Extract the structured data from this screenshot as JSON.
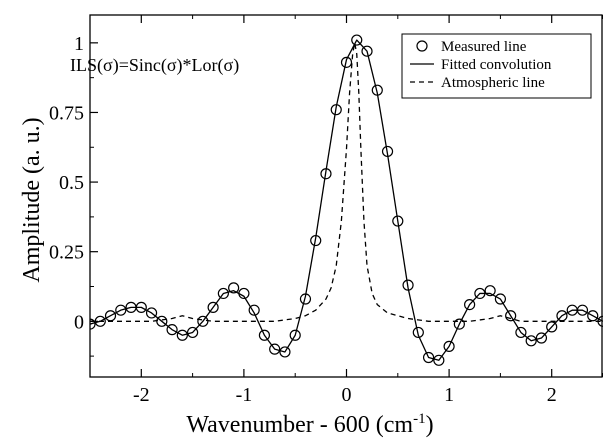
{
  "chart_data": {
    "type": "line",
    "title": "",
    "xlabel": "Wavenumber - 600 (cm",
    "xlabel_sup": "-1",
    "xlabel_close": ")",
    "ylabel": "Amplitude (a. u.)",
    "xlim": [
      -2.5,
      2.5
    ],
    "ylim": [
      -0.2,
      1.1
    ],
    "x_ticks": [
      {
        "value": -2,
        "label": "-2"
      },
      {
        "value": -1,
        "label": "-1"
      },
      {
        "value": 0,
        "label": "0"
      },
      {
        "value": 1,
        "label": "1"
      },
      {
        "value": 2,
        "label": "2"
      }
    ],
    "y_ticks": [
      {
        "value": 0,
        "label": "0"
      },
      {
        "value": 0.25,
        "label": "0.25"
      },
      {
        "value": 0.5,
        "label": "0.5"
      },
      {
        "value": 0.75,
        "label": "0.75"
      },
      {
        "value": 1,
        "label": "1"
      }
    ],
    "grid": false,
    "annotation": "ILS(σ)=Sinc(σ)*Lor(σ)",
    "legend_position": "top-right",
    "series": [
      {
        "name": "Measured line",
        "style": "circle-markers",
        "x": [
          -2.5,
          -2.4,
          -2.3,
          -2.2,
          -2.1,
          -2.0,
          -1.9,
          -1.8,
          -1.7,
          -1.6,
          -1.5,
          -1.4,
          -1.3,
          -1.2,
          -1.1,
          -1.0,
          -0.9,
          -0.8,
          -0.7,
          -0.6,
          -0.5,
          -0.4,
          -0.3,
          -0.2,
          -0.1,
          0.0,
          0.1,
          0.2,
          0.3,
          0.4,
          0.5,
          0.6,
          0.7,
          0.8,
          0.9,
          1.0,
          1.1,
          1.2,
          1.3,
          1.4,
          1.5,
          1.6,
          1.7,
          1.8,
          1.9,
          2.0,
          2.1,
          2.2,
          2.3,
          2.4,
          2.5
        ],
        "y": [
          -0.01,
          0.0,
          0.02,
          0.04,
          0.05,
          0.05,
          0.03,
          0.0,
          -0.03,
          -0.05,
          -0.04,
          0.0,
          0.05,
          0.1,
          0.12,
          0.1,
          0.04,
          -0.05,
          -0.1,
          -0.11,
          -0.05,
          0.08,
          0.29,
          0.53,
          0.76,
          0.93,
          1.01,
          0.97,
          0.83,
          0.61,
          0.36,
          0.13,
          -0.04,
          -0.13,
          -0.14,
          -0.09,
          -0.01,
          0.06,
          0.1,
          0.11,
          0.08,
          0.02,
          -0.04,
          -0.07,
          -0.06,
          -0.02,
          0.02,
          0.04,
          0.04,
          0.02,
          0.0
        ]
      },
      {
        "name": "Fitted convolution",
        "style": "solid",
        "x": [
          -2.5,
          -2.4,
          -2.3,
          -2.2,
          -2.1,
          -2.0,
          -1.9,
          -1.8,
          -1.7,
          -1.6,
          -1.5,
          -1.4,
          -1.3,
          -1.2,
          -1.1,
          -1.0,
          -0.9,
          -0.8,
          -0.7,
          -0.6,
          -0.5,
          -0.4,
          -0.3,
          -0.2,
          -0.1,
          0.0,
          0.1,
          0.2,
          0.3,
          0.4,
          0.5,
          0.6,
          0.7,
          0.8,
          0.9,
          1.0,
          1.1,
          1.2,
          1.3,
          1.4,
          1.5,
          1.6,
          1.7,
          1.8,
          1.9,
          2.0,
          2.1,
          2.2,
          2.3,
          2.4,
          2.5
        ],
        "y": [
          -0.01,
          0.0,
          0.02,
          0.04,
          0.05,
          0.05,
          0.03,
          0.0,
          -0.03,
          -0.05,
          -0.04,
          0.0,
          0.05,
          0.1,
          0.11,
          0.09,
          0.03,
          -0.05,
          -0.1,
          -0.11,
          -0.05,
          0.09,
          0.3,
          0.54,
          0.77,
          0.94,
          1.01,
          0.97,
          0.82,
          0.6,
          0.36,
          0.12,
          -0.05,
          -0.13,
          -0.14,
          -0.09,
          -0.01,
          0.06,
          0.1,
          0.1,
          0.08,
          0.02,
          -0.04,
          -0.07,
          -0.06,
          -0.02,
          0.02,
          0.04,
          0.04,
          0.02,
          0.0
        ]
      },
      {
        "name": "Atmospheric line",
        "style": "dashed",
        "x": [
          -2.5,
          -2.3,
          -2.1,
          -1.9,
          -1.7,
          -1.6,
          -1.5,
          -1.3,
          -1.1,
          -0.9,
          -0.7,
          -0.5,
          -0.4,
          -0.3,
          -0.2,
          -0.15,
          -0.1,
          -0.05,
          0.0,
          0.03,
          0.06,
          0.08,
          0.1,
          0.12,
          0.14,
          0.17,
          0.2,
          0.25,
          0.3,
          0.4,
          0.5,
          0.6,
          0.8,
          1.0,
          1.2,
          1.4,
          1.5,
          1.6,
          1.7,
          1.9,
          2.1,
          2.3,
          2.5
        ],
        "y": [
          0.0,
          0.0,
          0.0,
          0.0,
          0.01,
          0.02,
          0.01,
          0.0,
          0.0,
          0.0,
          0.0,
          0.01,
          0.02,
          0.04,
          0.08,
          0.12,
          0.2,
          0.36,
          0.62,
          0.82,
          0.96,
          1.0,
          0.96,
          0.82,
          0.62,
          0.36,
          0.2,
          0.1,
          0.06,
          0.03,
          0.02,
          0.01,
          0.0,
          0.0,
          0.0,
          0.01,
          0.02,
          0.01,
          0.0,
          0.0,
          0.0,
          0.0,
          0.0
        ]
      }
    ]
  }
}
